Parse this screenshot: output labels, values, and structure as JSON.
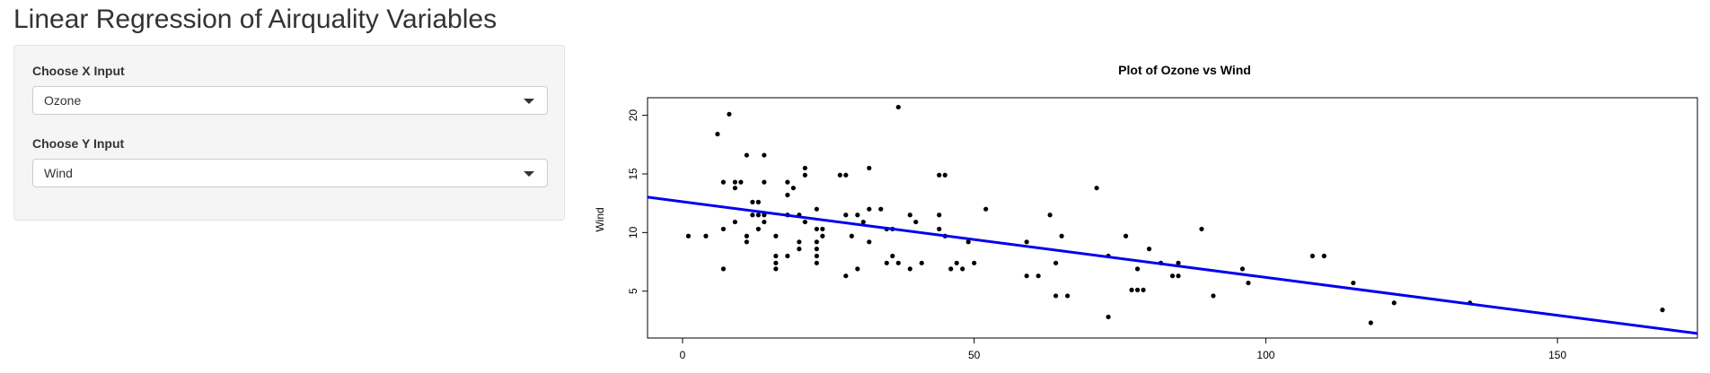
{
  "page": {
    "title": "Linear Regression of Airquality Variables"
  },
  "inputs": {
    "x": {
      "label": "Choose X Input",
      "value": "Ozone"
    },
    "y": {
      "label": "Choose Y Input",
      "value": "Wind"
    }
  },
  "chart_data": {
    "type": "scatter",
    "title": "Plot of Ozone vs Wind",
    "xlabel": "",
    "ylabel": "Wind",
    "xlim": [
      -6,
      174
    ],
    "ylim": [
      1,
      21.5
    ],
    "xticks": [
      0,
      50,
      100,
      150
    ],
    "yticks": [
      5,
      10,
      15,
      20
    ],
    "grid": false,
    "colors": {
      "points": "#000000",
      "regression_line": "#0000ee"
    },
    "regression_line": {
      "intercept": 12.63,
      "slope": -0.0646
    },
    "points": [
      [
        1,
        9.7
      ],
      [
        4,
        9.7
      ],
      [
        6,
        18.4
      ],
      [
        7,
        6.9
      ],
      [
        7,
        10.3
      ],
      [
        7,
        14.3
      ],
      [
        8,
        20.1
      ],
      [
        9,
        13.8
      ],
      [
        9,
        14.3
      ],
      [
        10,
        14.3
      ],
      [
        9,
        10.9
      ],
      [
        11,
        9.7
      ],
      [
        11,
        9.2
      ],
      [
        11,
        16.6
      ],
      [
        12,
        11.5
      ],
      [
        12,
        12.6
      ],
      [
        13,
        12.6
      ],
      [
        13,
        11.5
      ],
      [
        13,
        10.3
      ],
      [
        14,
        10.9
      ],
      [
        14,
        11.5
      ],
      [
        14,
        14.3
      ],
      [
        14,
        16.6
      ],
      [
        16,
        9.7
      ],
      [
        16,
        7.4
      ],
      [
        16,
        8.0
      ],
      [
        16,
        6.9
      ],
      [
        18,
        14.3
      ],
      [
        18,
        13.2
      ],
      [
        18,
        8.0
      ],
      [
        18,
        11.5
      ],
      [
        19,
        13.8
      ],
      [
        20,
        11.5
      ],
      [
        20,
        9.2
      ],
      [
        20,
        8.6
      ],
      [
        21,
        10.9
      ],
      [
        21,
        15.5
      ],
      [
        21,
        14.9
      ],
      [
        23,
        12.0
      ],
      [
        23,
        10.3
      ],
      [
        23,
        9.2
      ],
      [
        23,
        8.6
      ],
      [
        23,
        8.0
      ],
      [
        23,
        7.4
      ],
      [
        24,
        10.3
      ],
      [
        24,
        9.7
      ],
      [
        27,
        14.9
      ],
      [
        28,
        14.9
      ],
      [
        28,
        11.5
      ],
      [
        28,
        6.3
      ],
      [
        29,
        9.7
      ],
      [
        30,
        11.5
      ],
      [
        30,
        6.9
      ],
      [
        31,
        10.9
      ],
      [
        32,
        15.5
      ],
      [
        32,
        12.0
      ],
      [
        32,
        9.2
      ],
      [
        34,
        12.0
      ],
      [
        35,
        10.3
      ],
      [
        35,
        7.4
      ],
      [
        36,
        8.0
      ],
      [
        36,
        10.3
      ],
      [
        37,
        20.7
      ],
      [
        37,
        7.4
      ],
      [
        39,
        11.5
      ],
      [
        39,
        6.9
      ],
      [
        40,
        10.9
      ],
      [
        41,
        7.4
      ],
      [
        44,
        14.9
      ],
      [
        44,
        11.5
      ],
      [
        44,
        10.3
      ],
      [
        45,
        14.9
      ],
      [
        45,
        9.7
      ],
      [
        46,
        6.9
      ],
      [
        47,
        7.4
      ],
      [
        48,
        6.9
      ],
      [
        49,
        9.2
      ],
      [
        50,
        7.4
      ],
      [
        52,
        12.0
      ],
      [
        59,
        9.2
      ],
      [
        59,
        6.3
      ],
      [
        61,
        6.3
      ],
      [
        63,
        11.5
      ],
      [
        64,
        7.4
      ],
      [
        64,
        4.6
      ],
      [
        65,
        9.7
      ],
      [
        66,
        4.6
      ],
      [
        71,
        13.8
      ],
      [
        73,
        8.0
      ],
      [
        73,
        2.8
      ],
      [
        76,
        9.7
      ],
      [
        77,
        5.1
      ],
      [
        78,
        6.9
      ],
      [
        78,
        5.1
      ],
      [
        79,
        5.1
      ],
      [
        80,
        8.6
      ],
      [
        82,
        7.4
      ],
      [
        84,
        6.3
      ],
      [
        85,
        6.3
      ],
      [
        85,
        7.4
      ],
      [
        89,
        10.3
      ],
      [
        91,
        4.6
      ],
      [
        96,
        6.9
      ],
      [
        97,
        5.7
      ],
      [
        108,
        8.0
      ],
      [
        110,
        8.0
      ],
      [
        115,
        5.7
      ],
      [
        118,
        2.3
      ],
      [
        122,
        4.0
      ],
      [
        135,
        4.0
      ],
      [
        168,
        3.4
      ]
    ]
  }
}
